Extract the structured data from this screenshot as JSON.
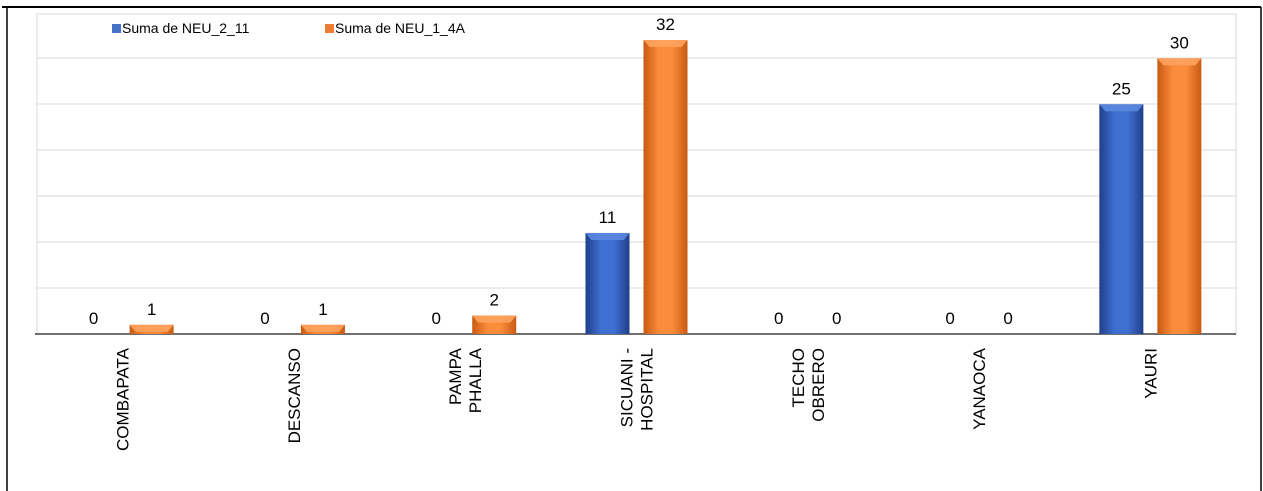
{
  "chart_data": {
    "type": "bar",
    "title": "",
    "xlabel": "",
    "ylabel": "",
    "categories": [
      [
        "COMBAPATA"
      ],
      [
        "DESCANSO"
      ],
      [
        "PAMPA",
        "PHALLA"
      ],
      [
        "SICUANI -",
        "HOSPITAL"
      ],
      [
        "TECHO",
        "OBRERO"
      ],
      [
        "YANAOCA"
      ],
      [
        "YAURI"
      ]
    ],
    "series": [
      {
        "name": "Suma de NEU_2_11",
        "color": "#4472C4",
        "values": [
          0,
          0,
          0,
          11,
          0,
          0,
          25
        ]
      },
      {
        "name": "Suma de NEU_1_4A",
        "color": "#ED7D31",
        "values": [
          1,
          1,
          2,
          32,
          0,
          0,
          30
        ]
      }
    ],
    "ylim": [
      0,
      32
    ],
    "grid": true,
    "legend_position": "top-left",
    "data_labels": true
  }
}
